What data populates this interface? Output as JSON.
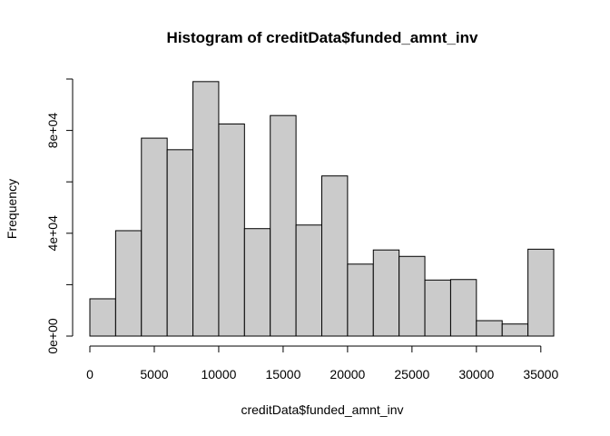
{
  "chart_data": {
    "type": "bar",
    "title": "Histogram of creditData$funded_amnt_inv",
    "xlabel": "creditData$funded_amnt_inv",
    "ylabel": "Frequency",
    "xlim": [
      0,
      36000
    ],
    "ylim": [
      0,
      100000
    ],
    "x_ticks": [
      0,
      5000,
      10000,
      15000,
      20000,
      25000,
      30000,
      35000
    ],
    "x_tick_labels": [
      "0",
      "5000",
      "10000",
      "15000",
      "20000",
      "25000",
      "30000",
      "35000"
    ],
    "y_ticks": [
      0,
      20000,
      40000,
      60000,
      80000,
      100000
    ],
    "y_tick_labels": [
      "0e+00",
      "",
      "4e+04",
      "",
      "8e+04",
      ""
    ],
    "bins": [
      [
        0,
        2000
      ],
      [
        2000,
        4000
      ],
      [
        4000,
        6000
      ],
      [
        6000,
        8000
      ],
      [
        8000,
        10000
      ],
      [
        10000,
        12000
      ],
      [
        12000,
        14000
      ],
      [
        14000,
        16000
      ],
      [
        16000,
        18000
      ],
      [
        18000,
        20000
      ],
      [
        20000,
        22000
      ],
      [
        22000,
        24000
      ],
      [
        24000,
        26000
      ],
      [
        26000,
        28000
      ],
      [
        28000,
        30000
      ],
      [
        30000,
        32000
      ],
      [
        32000,
        34000
      ],
      [
        34000,
        36000
      ]
    ],
    "values": [
      14500,
      41000,
      77000,
      72500,
      99000,
      82500,
      41800,
      85800,
      43200,
      62300,
      28000,
      33500,
      31000,
      21800,
      22000,
      6000,
      4700,
      33800
    ],
    "bar_fill": "#cbcbcb",
    "bar_stroke": "#000000",
    "grid": false,
    "legend": "none"
  }
}
